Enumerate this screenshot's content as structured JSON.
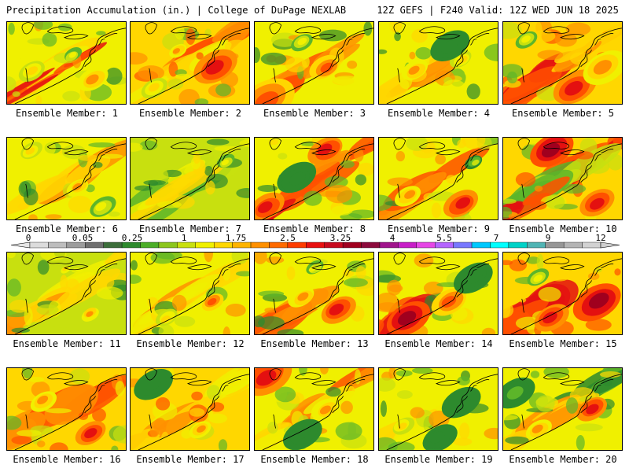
{
  "header": {
    "left": "Precipitation Accumulation (in.) | College of DuPage NEXLAB",
    "right": "12Z GEFS | F240 Valid: 12Z WED JUN 18 2025"
  },
  "caption_prefix": "Ensemble Member: ",
  "members": [
    {
      "label": "Ensemble Member: 1",
      "base": 1,
      "bands": [
        [
          0.5,
          3,
          0.12
        ],
        [
          0.75,
          6,
          0.05
        ]
      ],
      "hot": [
        [
          0.72,
          0.7,
          5,
          7
        ],
        [
          0.2,
          0.6,
          4,
          6
        ],
        [
          0.55,
          0.4,
          3,
          4
        ]
      ]
    },
    {
      "label": "Ensemble Member: 2",
      "base": 2,
      "bands": [
        [
          0.2,
          5,
          0.15
        ],
        [
          0.6,
          3,
          0.1
        ]
      ],
      "hot": [
        [
          0.72,
          0.55,
          7,
          10
        ],
        [
          0.4,
          0.35,
          5,
          4
        ],
        [
          0.2,
          0.8,
          4,
          6
        ]
      ]
    },
    {
      "label": "Ensemble Member: 3",
      "base": 1,
      "bands": [
        [
          0.7,
          5,
          0.12
        ]
      ],
      "hot": [
        [
          0.6,
          0.55,
          6,
          7
        ],
        [
          0.1,
          0.95,
          6,
          13
        ],
        [
          0.4,
          0.25,
          3,
          5
        ]
      ]
    },
    {
      "label": "Ensemble Member: 4",
      "base": 1,
      "bands": [
        [
          0.7,
          4,
          0.12
        ]
      ],
      "hot": [
        [
          0.3,
          0.6,
          5,
          6
        ],
        [
          0.7,
          0.45,
          4,
          5
        ],
        [
          0.6,
          0.3,
          0,
          9
        ]
      ]
    },
    {
      "label": "Ensemble Member: 5",
      "base": 2,
      "bands": [
        [
          0.8,
          6,
          0.15
        ],
        [
          0.35,
          4,
          0.1
        ]
      ],
      "hot": [
        [
          0.6,
          0.8,
          7,
          10
        ],
        [
          0.85,
          0.55,
          5,
          10
        ],
        [
          0.2,
          0.2,
          3,
          5
        ]
      ]
    },
    {
      "label": "Ensemble Member: 6",
      "base": 1,
      "bands": [
        [
          0.6,
          4,
          0.12
        ]
      ],
      "hot": [
        [
          0.6,
          0.6,
          5,
          5
        ],
        [
          0.2,
          0.15,
          4,
          5
        ],
        [
          0.8,
          0.85,
          3,
          6
        ]
      ]
    },
    {
      "label": "Ensemble Member: 7",
      "base": 0,
      "bands": [
        [
          0.45,
          1,
          0.3
        ],
        [
          0.1,
          2,
          0.08
        ],
        [
          0.85,
          3,
          0.08
        ]
      ],
      "hot": [
        [
          0.8,
          0.3,
          3,
          4
        ]
      ]
    },
    {
      "label": "Ensemble Member: 8",
      "base": 1,
      "bands": [
        [
          0.3,
          5,
          0.1
        ],
        [
          0.8,
          6,
          0.15
        ]
      ],
      "hot": [
        [
          0.6,
          0.15,
          7,
          8
        ],
        [
          0.1,
          0.85,
          7,
          8
        ],
        [
          0.35,
          0.5,
          0,
          9
        ]
      ]
    },
    {
      "label": "Ensemble Member: 9",
      "base": 1,
      "bands": [
        [
          0.7,
          5,
          0.15
        ]
      ],
      "hot": [
        [
          0.7,
          0.8,
          7,
          8
        ],
        [
          0.25,
          0.7,
          5,
          6
        ],
        [
          0.8,
          0.3,
          2,
          4
        ]
      ]
    },
    {
      "label": "Ensemble Member: 10",
      "base": 2,
      "bands": [
        [
          0.15,
          6,
          0.14
        ],
        [
          0.55,
          1,
          0.15
        ],
        [
          0.8,
          6,
          0.12
        ]
      ],
      "hot": [
        [
          0.4,
          0.15,
          8,
          10
        ],
        [
          0.8,
          0.8,
          7,
          8
        ]
      ]
    },
    {
      "label": "Ensemble Member: 11",
      "base": 0,
      "bands": [
        [
          0.2,
          3,
          0.1
        ],
        [
          0.7,
          4,
          0.12
        ]
      ],
      "hot": [
        [
          0.7,
          0.75,
          5,
          4
        ],
        [
          0.5,
          0.2,
          4,
          3
        ]
      ]
    },
    {
      "label": "Ensemble Member: 12",
      "base": 1,
      "bands": [
        [
          0.4,
          4,
          0.1
        ],
        [
          0.8,
          3,
          0.1
        ]
      ],
      "hot": [
        [
          0.7,
          0.6,
          6,
          5
        ],
        [
          0.3,
          0.8,
          4,
          5
        ]
      ]
    },
    {
      "label": "Ensemble Member: 13",
      "base": 1,
      "bands": [
        [
          0.75,
          5,
          0.15
        ]
      ],
      "hot": [
        [
          0.7,
          0.7,
          7,
          8
        ],
        [
          0.4,
          0.55,
          5,
          6
        ],
        [
          0.5,
          0.2,
          3,
          4
        ]
      ]
    },
    {
      "label": "Ensemble Member: 14",
      "base": 1,
      "bands": [
        [
          0.7,
          6,
          0.2
        ]
      ],
      "hot": [
        [
          0.25,
          0.8,
          8,
          10
        ],
        [
          0.6,
          0.6,
          6,
          8
        ],
        [
          0.8,
          0.3,
          0,
          9
        ]
      ]
    },
    {
      "label": "Ensemble Member: 15",
      "base": 2,
      "bands": [
        [
          0.7,
          6,
          0.2
        ]
      ],
      "hot": [
        [
          0.8,
          0.6,
          8,
          11
        ],
        [
          0.4,
          0.8,
          7,
          8
        ],
        [
          0.3,
          0.3,
          3,
          5
        ]
      ]
    },
    {
      "label": "Ensemble Member: 16",
      "base": 2,
      "bands": [
        [
          0.5,
          5,
          0.2
        ]
      ],
      "hot": [
        [
          0.7,
          0.8,
          7,
          7
        ],
        [
          0.3,
          0.4,
          5,
          6
        ]
      ]
    },
    {
      "label": "Ensemble Member: 17",
      "base": 2,
      "bands": [
        [
          0.4,
          3,
          0.12
        ],
        [
          0.8,
          4,
          0.12
        ]
      ],
      "hot": [
        [
          0.6,
          0.75,
          5,
          5
        ],
        [
          0.2,
          0.2,
          0,
          9
        ]
      ]
    },
    {
      "label": "Ensemble Member: 18",
      "base": 1,
      "bands": [
        [
          0.2,
          5,
          0.1
        ],
        [
          0.7,
          3,
          0.12
        ]
      ],
      "hot": [
        [
          0.1,
          0.1,
          7,
          11
        ],
        [
          0.6,
          0.5,
          5,
          6
        ],
        [
          0.4,
          0.8,
          0,
          9
        ]
      ]
    },
    {
      "label": "Ensemble Member: 19",
      "base": 1,
      "bands": [
        [
          0.6,
          3,
          0.12
        ]
      ],
      "hot": [
        [
          0.2,
          0.7,
          4,
          5
        ],
        [
          0.7,
          0.4,
          0,
          9
        ],
        [
          0.5,
          0.85,
          0,
          8
        ]
      ]
    },
    {
      "label": "Ensemble Member: 20",
      "base": 1,
      "bands": [
        [
          0.15,
          0,
          0.12
        ],
        [
          0.6,
          4,
          0.15
        ]
      ],
      "hot": [
        [
          0.75,
          0.5,
          7,
          7
        ],
        [
          0.3,
          0.75,
          5,
          6
        ],
        [
          0.1,
          0.3,
          1,
          9
        ]
      ]
    }
  ],
  "colorbar": {
    "ticks": [
      "0",
      "0.05",
      "0.25",
      "1",
      "1.75",
      "2.5",
      "3.25",
      "4",
      "5.5",
      "7",
      "9",
      "12"
    ],
    "colors": [
      "#dcdcdc",
      "#bdbdbd",
      "#9c9c9c",
      "#6f6f6f",
      "#3c6e3a",
      "#2d8a2d",
      "#4cae28",
      "#8cc61e",
      "#c8e00f",
      "#f0f000",
      "#ffd700",
      "#ffb400",
      "#ff9000",
      "#ff6a00",
      "#ff3c00",
      "#e81010",
      "#c80a1e",
      "#a0001e",
      "#8c0a3c",
      "#a0148c",
      "#c81ec8",
      "#e646e6",
      "#b464ff",
      "#7878ff",
      "#00c8ff",
      "#00ffff",
      "#00d2c8",
      "#50b4b4",
      "#969696",
      "#b4b4b4",
      "#d2d2d2"
    ]
  },
  "palette": {
    "levels": [
      "#2d8a2d",
      "#5cb52a",
      "#c8e00f",
      "#f0f000",
      "#ffd700",
      "#ff9000",
      "#ff5000",
      "#e41010",
      "#a0001e",
      "#8c0a3c",
      "#c81ec8",
      "#e646e6",
      "#7878ff",
      "#00ffff"
    ],
    "coastline": "#000000",
    "ocean_base": "#f0f000"
  }
}
